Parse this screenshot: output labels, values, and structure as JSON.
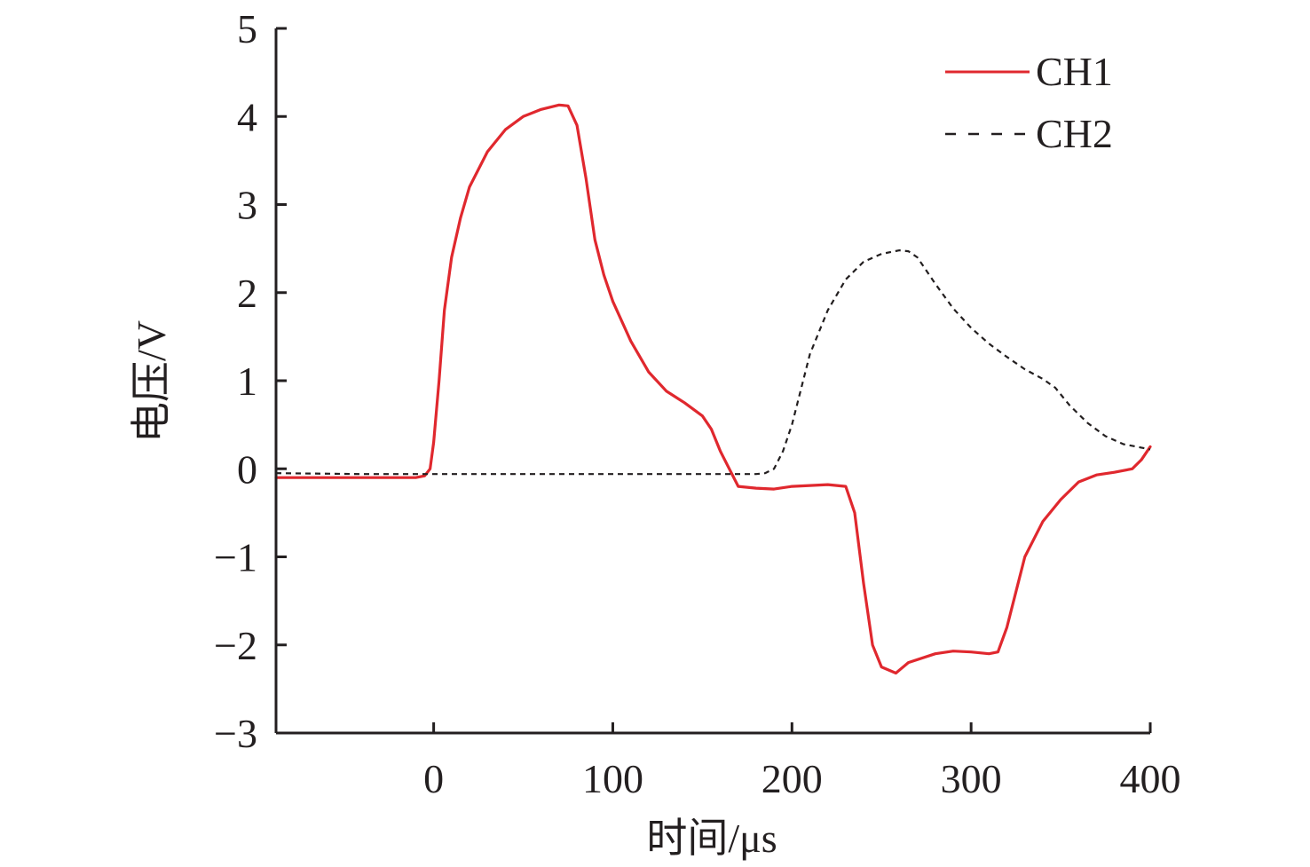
{
  "chart_data": {
    "type": "line",
    "xlabel": "时间/μs",
    "ylabel": "电压/V",
    "xlim": [
      -88,
      400
    ],
    "ylim": [
      -3,
      5
    ],
    "xticks": [
      0,
      100,
      200,
      300,
      400
    ],
    "yticks": [
      -3,
      -2,
      -1,
      0,
      1,
      2,
      3,
      4,
      5
    ],
    "xtick_labels": [
      "0",
      "100",
      "200",
      "300",
      "400"
    ],
    "ytick_labels": [
      "−3",
      "−2",
      "−1",
      "0",
      "1",
      "2",
      "3",
      "4",
      "5"
    ],
    "grid": false,
    "legend_position": "top-right",
    "series": [
      {
        "name": "CH1",
        "color": "#e0282e",
        "style": "solid",
        "points": [
          [
            -88,
            -0.1
          ],
          [
            -40,
            -0.1
          ],
          [
            -10,
            -0.1
          ],
          [
            -5,
            -0.08
          ],
          [
            -2,
            0.0
          ],
          [
            0,
            0.3
          ],
          [
            3,
            1.0
          ],
          [
            6,
            1.8
          ],
          [
            10,
            2.4
          ],
          [
            15,
            2.85
          ],
          [
            20,
            3.2
          ],
          [
            30,
            3.6
          ],
          [
            40,
            3.85
          ],
          [
            50,
            4.0
          ],
          [
            60,
            4.08
          ],
          [
            70,
            4.13
          ],
          [
            75,
            4.12
          ],
          [
            80,
            3.9
          ],
          [
            85,
            3.3
          ],
          [
            90,
            2.6
          ],
          [
            95,
            2.2
          ],
          [
            100,
            1.9
          ],
          [
            110,
            1.45
          ],
          [
            120,
            1.1
          ],
          [
            130,
            0.88
          ],
          [
            140,
            0.75
          ],
          [
            150,
            0.6
          ],
          [
            155,
            0.45
          ],
          [
            160,
            0.2
          ],
          [
            165,
            0.0
          ],
          [
            170,
            -0.2
          ],
          [
            180,
            -0.22
          ],
          [
            190,
            -0.23
          ],
          [
            200,
            -0.2
          ],
          [
            210,
            -0.19
          ],
          [
            220,
            -0.18
          ],
          [
            230,
            -0.2
          ],
          [
            235,
            -0.5
          ],
          [
            240,
            -1.3
          ],
          [
            245,
            -2.0
          ],
          [
            250,
            -2.25
          ],
          [
            258,
            -2.32
          ],
          [
            265,
            -2.2
          ],
          [
            280,
            -2.1
          ],
          [
            290,
            -2.07
          ],
          [
            300,
            -2.08
          ],
          [
            310,
            -2.1
          ],
          [
            315,
            -2.08
          ],
          [
            320,
            -1.8
          ],
          [
            325,
            -1.4
          ],
          [
            330,
            -1.0
          ],
          [
            340,
            -0.6
          ],
          [
            350,
            -0.35
          ],
          [
            360,
            -0.15
          ],
          [
            370,
            -0.07
          ],
          [
            380,
            -0.04
          ],
          [
            390,
            0.0
          ],
          [
            395,
            0.1
          ],
          [
            400,
            0.25
          ]
        ]
      },
      {
        "name": "CH2",
        "color": "#231f20",
        "style": "dashed",
        "points": [
          [
            -88,
            -0.05
          ],
          [
            -40,
            -0.06
          ],
          [
            0,
            -0.06
          ],
          [
            50,
            -0.06
          ],
          [
            100,
            -0.06
          ],
          [
            150,
            -0.06
          ],
          [
            180,
            -0.06
          ],
          [
            185,
            -0.05
          ],
          [
            190,
            0.0
          ],
          [
            195,
            0.2
          ],
          [
            200,
            0.5
          ],
          [
            205,
            0.9
          ],
          [
            210,
            1.3
          ],
          [
            220,
            1.8
          ],
          [
            230,
            2.15
          ],
          [
            240,
            2.35
          ],
          [
            250,
            2.44
          ],
          [
            260,
            2.48
          ],
          [
            265,
            2.47
          ],
          [
            270,
            2.4
          ],
          [
            280,
            2.1
          ],
          [
            290,
            1.82
          ],
          [
            300,
            1.6
          ],
          [
            310,
            1.42
          ],
          [
            320,
            1.27
          ],
          [
            330,
            1.13
          ],
          [
            340,
            1.02
          ],
          [
            347,
            0.92
          ],
          [
            355,
            0.72
          ],
          [
            365,
            0.52
          ],
          [
            375,
            0.37
          ],
          [
            385,
            0.28
          ],
          [
            395,
            0.24
          ],
          [
            400,
            0.22
          ]
        ]
      }
    ]
  }
}
